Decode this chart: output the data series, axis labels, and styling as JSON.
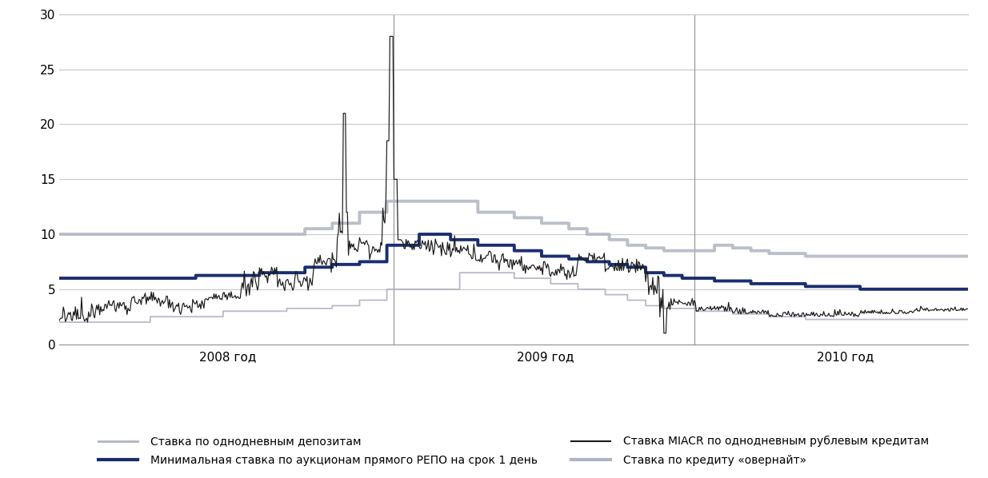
{
  "ylim": [
    0,
    30
  ],
  "yticks": [
    0,
    5,
    10,
    15,
    20,
    25,
    30
  ],
  "background_color": "#ffffff",
  "grid_color": "#c8c8c8",
  "color_deposit": "#b0b4c0",
  "color_miacr": "#1a1a1a",
  "color_repo": "#1a2e6e",
  "color_overnight": "#b0b4c0",
  "legend_labels": [
    "Ставка по однодневным депозитам",
    "Минимальная ставка по аукционам прямого РЕПО на срок 1 день",
    "Ставка MIACR по однодневным рублевым кредитам",
    "Ставка по кредиту «овернайт»"
  ],
  "vline_x": [
    0.368,
    0.699
  ],
  "x_tick_labels": [
    "2008 год",
    "2009 год",
    "2010 год"
  ],
  "x_tick_positions": [
    0.185,
    0.535,
    0.865
  ]
}
